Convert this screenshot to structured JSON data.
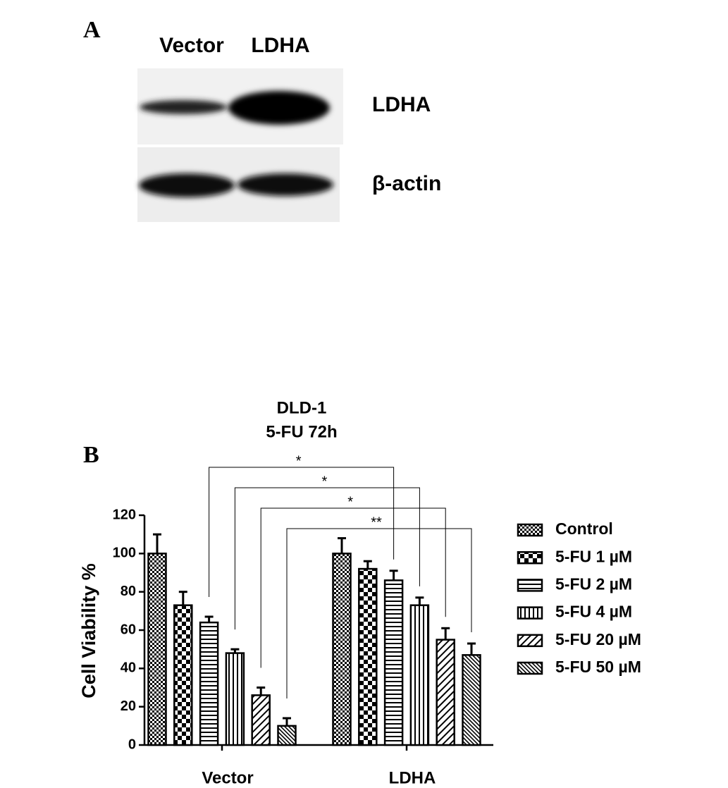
{
  "panel_a": {
    "label": "A",
    "lanes": [
      "Vector",
      "LDHA"
    ],
    "bands": [
      "LDHA",
      "β-actin"
    ]
  },
  "chart_data": {
    "type": "bar",
    "panel_label": "B",
    "title": "DLD-1",
    "subtitle": "5-FU 72h",
    "y_label": "Cell Viability %",
    "categories": [
      "Vector",
      "LDHA"
    ],
    "ylim": [
      0,
      120
    ],
    "yticks": [
      0,
      20,
      40,
      60,
      80,
      100,
      120
    ],
    "series": [
      {
        "name": "Control",
        "color": "#000000",
        "pattern": "checker-small",
        "values": [
          100,
          100
        ],
        "errors": [
          10,
          8
        ]
      },
      {
        "name": "5-FU 1 µM",
        "color": "#000000",
        "pattern": "checker-large",
        "values": [
          73,
          92
        ],
        "errors": [
          7,
          4
        ]
      },
      {
        "name": "5-FU 2 µM",
        "color": "#000000",
        "pattern": "horizontal",
        "values": [
          64,
          86
        ],
        "errors": [
          3,
          5
        ],
        "significance": "*"
      },
      {
        "name": "5-FU 4 µM",
        "color": "#000000",
        "pattern": "vertical",
        "values": [
          48,
          73
        ],
        "errors": [
          2,
          4
        ],
        "significance": "*"
      },
      {
        "name": "5-FU 20 µM",
        "color": "#000000",
        "pattern": "diagonal",
        "values": [
          26,
          55
        ],
        "errors": [
          4,
          6
        ],
        "significance": "*"
      },
      {
        "name": "5-FU 50 µM",
        "color": "#000000",
        "pattern": "diagonal-dense",
        "values": [
          10,
          47
        ],
        "errors": [
          4,
          6
        ],
        "significance": "**"
      }
    ]
  }
}
